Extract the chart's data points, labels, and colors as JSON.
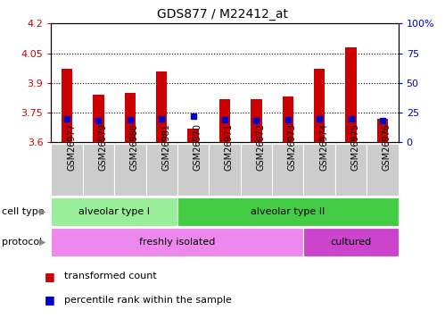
{
  "title": "GDS877 / M22412_at",
  "samples": [
    "GSM26977",
    "GSM26979",
    "GSM26980",
    "GSM26981",
    "GSM26970",
    "GSM26971",
    "GSM26972",
    "GSM26973",
    "GSM26974",
    "GSM26975",
    "GSM26976"
  ],
  "transformed_count": [
    3.97,
    3.84,
    3.85,
    3.96,
    3.67,
    3.82,
    3.82,
    3.83,
    3.97,
    4.08,
    3.72
  ],
  "percentile_rank": [
    20,
    18,
    19,
    20,
    22,
    19,
    18,
    19,
    20,
    20,
    18
  ],
  "ylim_left": [
    3.6,
    4.2
  ],
  "ylim_right": [
    0,
    100
  ],
  "yticks_left": [
    3.6,
    3.75,
    3.9,
    4.05,
    4.2
  ],
  "yticks_right": [
    0,
    25,
    50,
    75,
    100
  ],
  "ytick_labels_left": [
    "3.6",
    "3.75",
    "3.9",
    "4.05",
    "4.2"
  ],
  "ytick_labels_right": [
    "0",
    "25",
    "50",
    "75",
    "100%"
  ],
  "hlines": [
    3.75,
    3.9,
    4.05
  ],
  "bar_color": "#cc0000",
  "dot_color": "#0000cc",
  "cell_type_groups": [
    {
      "label": "alveolar type I",
      "start": 0,
      "end": 3,
      "color": "#99ee99"
    },
    {
      "label": "alveolar type II",
      "start": 4,
      "end": 10,
      "color": "#44cc44"
    }
  ],
  "protocol_groups": [
    {
      "label": "freshly isolated",
      "start": 0,
      "end": 7,
      "color": "#ee88ee"
    },
    {
      "label": "cultured",
      "start": 8,
      "end": 10,
      "color": "#cc44cc"
    }
  ],
  "cell_type_label": "cell type",
  "protocol_label": "protocol",
  "legend_items": [
    {
      "color": "#cc0000",
      "label": "transformed count"
    },
    {
      "color": "#0000cc",
      "label": "percentile rank within the sample"
    }
  ],
  "tick_label_color_left": "#cc0000",
  "tick_label_color_right": "#0000cc",
  "bar_width": 0.35,
  "background_color": "#ffffff",
  "xticklabel_bg": "#dddddd"
}
